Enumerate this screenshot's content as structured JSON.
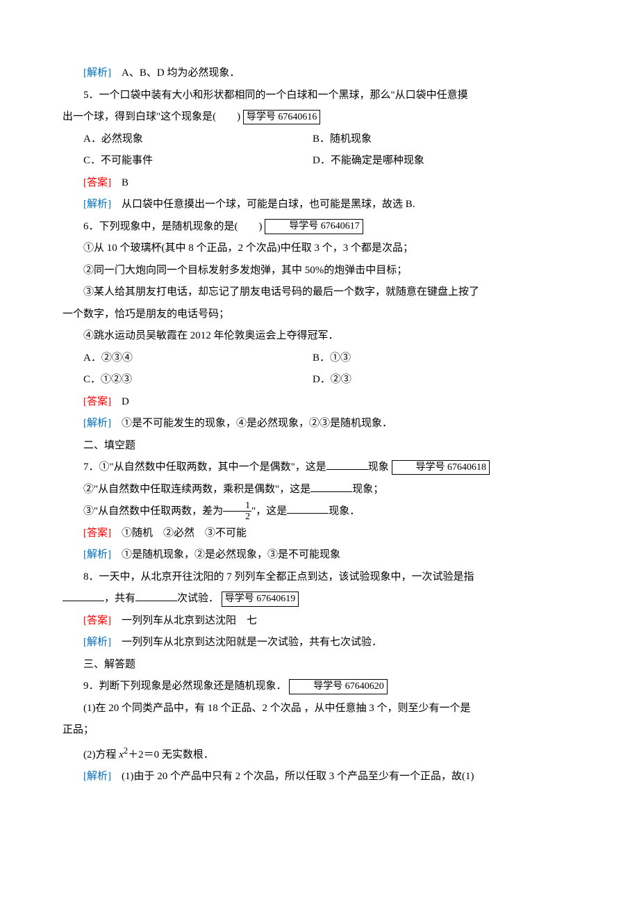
{
  "q4_analysis": {
    "label": "[解析]",
    "text": "　A、B、D 均为必然现象．"
  },
  "q5": {
    "stem_lead": "5．一个口袋中装有大小和形状都相同的一个白球和一个黑球，那么\"从口袋中任意摸",
    "stem_tail": "出一个球，得到白球\"这个现象是(　　)",
    "refbox": "导学号 67640616",
    "optA": "A．必然现象",
    "optB": "B．随机现象",
    "optC": "C．不可能事件",
    "optD": "D．不能确定是哪种现象",
    "ans_label": "[答案]",
    "ans": "　B",
    "ana_label": "[解析]",
    "ana": "　从口袋中任意摸出一个球，可能是白球，也可能是黑球，故选 B."
  },
  "q6": {
    "stem": "6．下列现象中，是随机现象的是(　　)",
    "refbox": "导学号 67640617",
    "item1": "①从 10 个玻璃杯(其中 8 个正品，2 个次品)中任取 3 个，3 个都是次品；",
    "item2": "②同一门大炮向同一个目标发射多发炮弹，其中 50%的炮弹击中目标；",
    "item3a": "③某人给其朋友打电话，却忘记了朋友电话号码的最后一个数字，就随意在键盘上按了",
    "item3b": "一个数字，恰巧是朋友的电话号码；",
    "item4": "④跳水运动员吴敏霞在 2012 年伦敦奥运会上夺得冠军．",
    "optA": "A．②③④",
    "optB": "B．①③",
    "optC": "C．①②③",
    "optD": "D．②③",
    "ans_label": "[答案]",
    "ans": "　D",
    "ana_label": "[解析]",
    "ana": "　①是不可能发生的现象，④是必然现象，②③是随机现象．"
  },
  "sec2": "二、填空题",
  "q7": {
    "s1a": "7．①\"从自然数中任取两数，其中一个是偶数\"，这是",
    "s1b": "现象",
    "refbox": "导学号 67640618",
    "s2a": "②\"从自然数中任取连续两数，乘积是偶数\"，这是",
    "s2b": "现象；",
    "s3a": "③\"从自然数中任取两数，差为",
    "s3b": "\"，这是",
    "s3c": "现象．",
    "ans_label": "[答案]",
    "ans": "　①随机　②必然　③不可能",
    "ana_label": "[解析]",
    "ana": "　①是随机现象，②是必然现象，③是不可能现象"
  },
  "q8": {
    "s1": "8．一天中，从北京开往沈阳的 7 列列车全都正点到达，该试验现象中，一次试验是指",
    "s2a": "，共有",
    "s2b": "次试验．",
    "refbox": "导学号 67640619",
    "ans_label": "[答案]",
    "ans": "　一列列车从北京到达沈阳　七",
    "ana_label": "[解析]",
    "ana": "　一列列车从北京到达沈阳就是一次试验，共有七次试验．"
  },
  "sec3": "三、解答题",
  "q9": {
    "stem": "9．判断下列现象是必然现象还是随机现象．",
    "refbox": "导学号 67640620",
    "p1a": "(1)在 20 个同类产品中，有 18 个正品、2 个次品 ，从中任意抽 3 个，则至少有一个是",
    "p1b": "正品；",
    "p2_a": "(2)方程 ",
    "p2_b": "＋2＝0 无实数根．",
    "ana_label": "[解析]",
    "ana": "　(1)由于 20 个产品中只有 2 个次品，所以任取 3 个产品至少有一个正品，故(1)"
  }
}
